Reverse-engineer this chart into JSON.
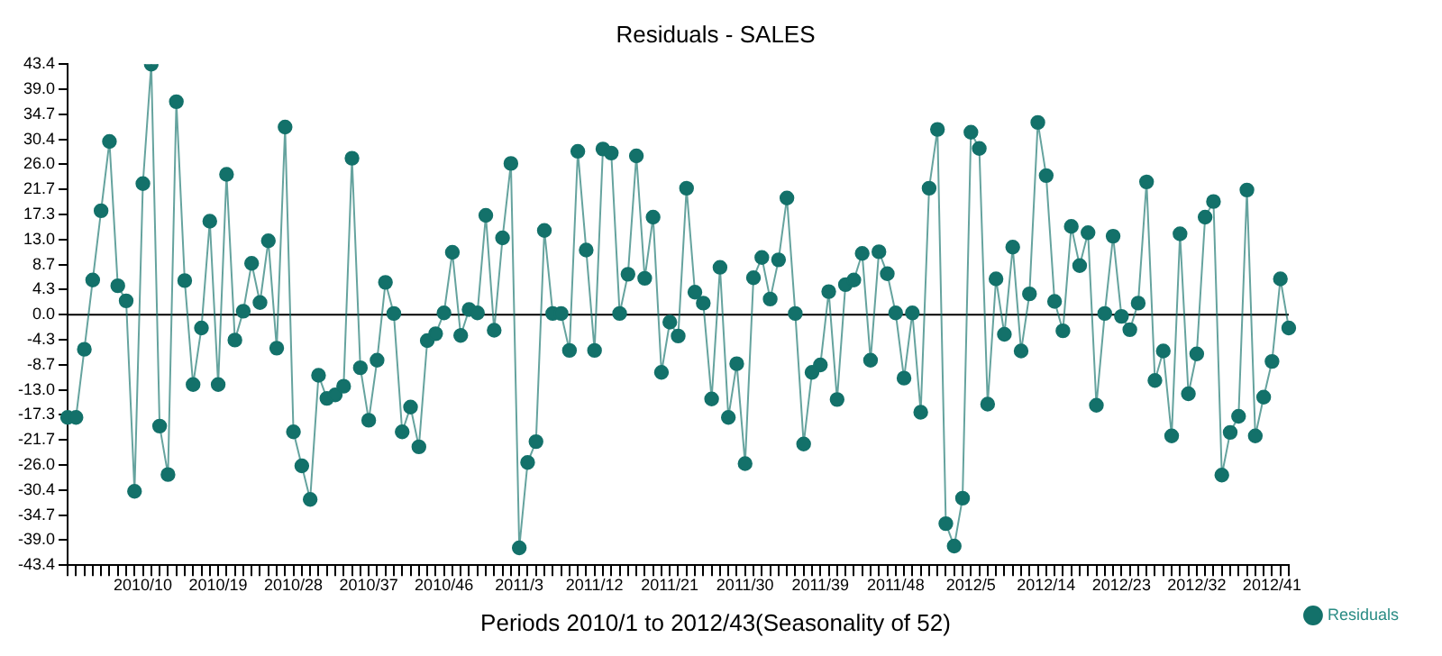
{
  "chart_data": {
    "type": "line",
    "title": "Residuals - SALES",
    "xlabel": "Periods 2010/1 to 2012/43(Seasonality of 52)",
    "categories": [
      null,
      null,
      null,
      null,
      null,
      null,
      null,
      null,
      null,
      "2010/10",
      null,
      null,
      null,
      null,
      null,
      null,
      null,
      null,
      "2010/19",
      null,
      null,
      null,
      null,
      null,
      null,
      null,
      null,
      "2010/28",
      null,
      null,
      null,
      null,
      null,
      null,
      null,
      null,
      "2010/37",
      null,
      null,
      null,
      null,
      null,
      null,
      null,
      null,
      "2010/46",
      null,
      null,
      null,
      null,
      null,
      null,
      null,
      null,
      "2011/3",
      null,
      null,
      null,
      null,
      null,
      null,
      null,
      null,
      "2011/12",
      null,
      null,
      null,
      null,
      null,
      null,
      null,
      null,
      "2011/21",
      null,
      null,
      null,
      null,
      null,
      null,
      null,
      null,
      "2011/30",
      null,
      null,
      null,
      null,
      null,
      null,
      null,
      null,
      "2011/39",
      null,
      null,
      null,
      null,
      null,
      null,
      null,
      null,
      "2011/48",
      null,
      null,
      null,
      null,
      null,
      null,
      null,
      null,
      "2012/5",
      null,
      null,
      null,
      null,
      null,
      null,
      null,
      null,
      "2012/14",
      null,
      null,
      null,
      null,
      null,
      null,
      null,
      null,
      "2012/23",
      null,
      null,
      null,
      null,
      null,
      null,
      null,
      null,
      "2012/32",
      null,
      null,
      null,
      null,
      null,
      null,
      null,
      null,
      "2012/41",
      null,
      null
    ],
    "series": [
      {
        "name": "Residuals",
        "color": "#13716a",
        "values": [
          -17.8,
          -17.8,
          -6.0,
          6.0,
          18.0,
          30.0,
          5.0,
          2.4,
          -30.6,
          22.7,
          43.4,
          -19.3,
          -27.7,
          36.9,
          5.9,
          -12.1,
          -2.3,
          16.2,
          -12.1,
          24.3,
          -4.4,
          0.6,
          8.9,
          2.1,
          12.8,
          -5.8,
          32.5,
          -20.3,
          -26.2,
          -32.0,
          -10.5,
          -14.5,
          -13.9,
          -12.4,
          27.1,
          -9.2,
          -18.3,
          -7.9,
          5.6,
          0.2,
          -20.3,
          -16.0,
          -22.9,
          -4.5,
          -3.3,
          0.3,
          10.8,
          -3.6,
          0.9,
          0.3,
          17.2,
          -2.7,
          13.3,
          26.2,
          -40.4,
          -25.6,
          -22.0,
          14.6,
          0.2,
          0.2,
          -6.2,
          28.3,
          11.2,
          -6.2,
          28.7,
          28.0,
          0.2,
          7.0,
          27.5,
          6.3,
          16.9,
          -10.0,
          -1.3,
          -3.7,
          21.9,
          3.9,
          2.0,
          -14.6,
          8.2,
          -17.8,
          -8.5,
          -25.8,
          6.4,
          9.9,
          2.7,
          9.5,
          20.2,
          0.2,
          -22.4,
          -10.0,
          -8.7,
          4.0,
          -14.7,
          5.2,
          6.0,
          10.6,
          -7.9,
          10.9,
          7.1,
          0.3,
          -11.0,
          0.3,
          -16.9,
          21.9,
          32.1,
          -36.2,
          -40.1,
          -31.8,
          31.6,
          28.8,
          -15.5,
          6.2,
          -3.4,
          11.7,
          -6.3,
          3.6,
          33.3,
          24.1,
          2.3,
          -2.8,
          15.3,
          8.5,
          14.2,
          -15.7,
          0.2,
          13.6,
          -0.3,
          -2.6,
          2.0,
          23.0,
          -11.4,
          -6.3,
          -21.0,
          14.0,
          -13.7,
          -6.8,
          16.9,
          19.6,
          -27.8,
          -20.4,
          -17.6,
          21.6,
          -21.0,
          -14.3,
          -8.1,
          6.2,
          -2.3
        ]
      }
    ],
    "ylim": [
      -43.4,
      43.4
    ],
    "yticks": [
      43.4,
      {
        "value": 39,
        "label": "39.0"
      },
      {
        "value": 34.72,
        "label": "34.7"
      },
      {
        "value": 30.38,
        "label": "30.4"
      },
      {
        "value": 26.04,
        "label": "26.0"
      },
      21.7,
      17.3,
      {
        "value": 13.02,
        "label": "13.0"
      },
      {
        "value": 8.68,
        "label": "8.7"
      },
      {
        "value": 4.34,
        "label": "4.3"
      },
      {
        "value": 0,
        "label": "0.0"
      },
      {
        "value": -4.34,
        "label": "-4.3"
      },
      {
        "value": -8.68,
        "label": "-8.7"
      },
      {
        "value": -13.02,
        "label": "-13.0"
      },
      -17.3,
      -21.7,
      {
        "value": -26.04,
        "label": "-26.0"
      },
      {
        "value": -30.38,
        "label": "-30.4"
      },
      {
        "value": -34.72,
        "label": "-34.7"
      },
      {
        "value": -39,
        "label": "-39.0"
      },
      -43.4
    ],
    "ref_lines": [
      {
        "axis": "y",
        "value": 0,
        "color": "#000000"
      }
    ],
    "marker": "circle",
    "legend": "right"
  }
}
